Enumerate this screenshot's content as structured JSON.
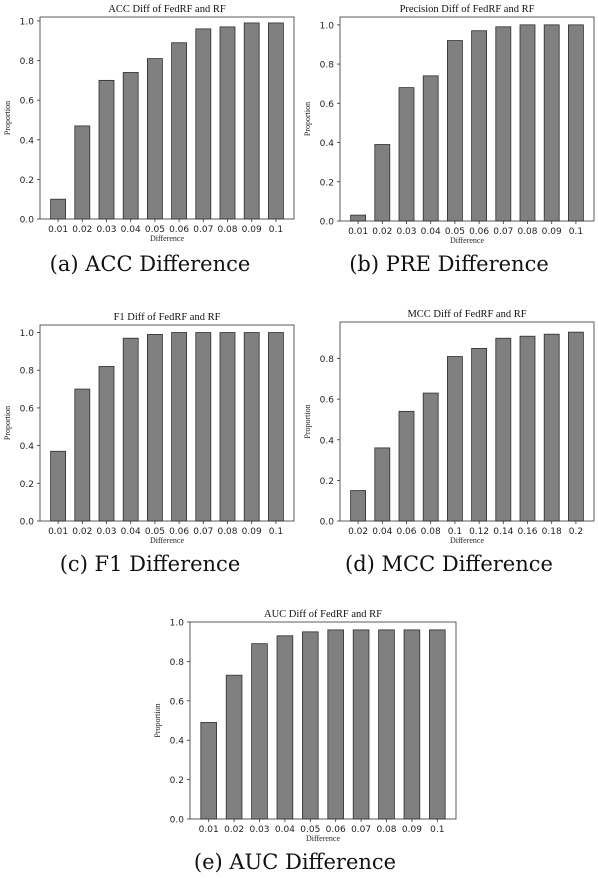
{
  "chart_data": [
    {
      "type": "bar",
      "title": "ACC Diff of FedRF and RF",
      "xlabel": "Difference",
      "ylabel": "Proportion",
      "categories": [
        "0.01",
        "0.02",
        "0.03",
        "0.04",
        "0.05",
        "0.06",
        "0.07",
        "0.08",
        "0.09",
        "0.1"
      ],
      "values": [
        0.1,
        0.47,
        0.7,
        0.74,
        0.81,
        0.89,
        0.96,
        0.97,
        0.99,
        0.99
      ],
      "ylim": [
        0,
        1.02
      ],
      "yticks": [
        "0.0",
        "0.2",
        "0.4",
        "0.6",
        "0.8",
        "1.0"
      ],
      "caption": "(a) ACC Difference"
    },
    {
      "type": "bar",
      "title": "Precision Diff of FedRF and RF",
      "xlabel": "Difference",
      "ylabel": "Proportion",
      "categories": [
        "0.01",
        "0.02",
        "0.03",
        "0.04",
        "0.05",
        "0.06",
        "0.07",
        "0.08",
        "0.09",
        "0.1"
      ],
      "values": [
        0.03,
        0.39,
        0.68,
        0.74,
        0.92,
        0.97,
        0.99,
        1.0,
        1.0,
        1.0
      ],
      "ylim": [
        0,
        1.04
      ],
      "yticks": [
        "0.0",
        "0.2",
        "0.4",
        "0.6",
        "0.8",
        "1.0"
      ],
      "caption": "(b) PRE Difference"
    },
    {
      "type": "bar",
      "title": "F1 Diff of FedRF and RF",
      "xlabel": "Difference",
      "ylabel": "Proportion",
      "categories": [
        "0.01",
        "0.02",
        "0.03",
        "0.04",
        "0.05",
        "0.06",
        "0.07",
        "0.08",
        "0.09",
        "0.1"
      ],
      "values": [
        0.37,
        0.7,
        0.82,
        0.97,
        0.99,
        1.0,
        1.0,
        1.0,
        1.0,
        1.0
      ],
      "ylim": [
        0,
        1.04
      ],
      "yticks": [
        "0.0",
        "0.2",
        "0.4",
        "0.6",
        "0.8",
        "1.0"
      ],
      "caption": "(c) F1 Difference"
    },
    {
      "type": "bar",
      "title": "MCC Diff of FedRF and RF",
      "xlabel": "Difference",
      "ylabel": "Proportion",
      "categories": [
        "0.02",
        "0.04",
        "0.06",
        "0.08",
        "0.1",
        "0.12",
        "0.14",
        "0.16",
        "0.18",
        "0.2"
      ],
      "values": [
        0.15,
        0.36,
        0.54,
        0.63,
        0.81,
        0.85,
        0.9,
        0.91,
        0.92,
        0.93
      ],
      "ylim": [
        0,
        0.98
      ],
      "yticks": [
        "0.0",
        "0.2",
        "0.4",
        "0.6",
        "0.8"
      ],
      "caption": "(d) MCC Difference"
    },
    {
      "type": "bar",
      "title": "AUC Diff of FedRF and RF",
      "xlabel": "Difference",
      "ylabel": "Proportion",
      "categories": [
        "0.01",
        "0.02",
        "0.03",
        "0.04",
        "0.05",
        "0.06",
        "0.07",
        "0.08",
        "0.09",
        "0.1"
      ],
      "values": [
        0.49,
        0.73,
        0.89,
        0.93,
        0.95,
        0.96,
        0.96,
        0.96,
        0.96,
        0.96
      ],
      "ylim": [
        0,
        1.0
      ],
      "yticks": [
        "0.0",
        "0.2",
        "0.4",
        "0.6",
        "0.8",
        "1.0"
      ],
      "caption": "(e) AUC Difference"
    }
  ],
  "colors": {
    "bar": "#808080",
    "bar_edge": "#2e2e2e",
    "axis": "#333333"
  }
}
